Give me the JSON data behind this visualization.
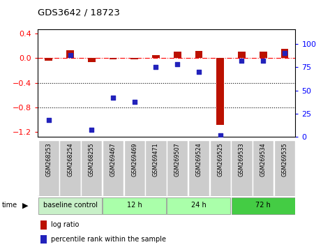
{
  "title": "GDS3642 / 18723",
  "samples": [
    "GSM268253",
    "GSM268254",
    "GSM268255",
    "GSM269467",
    "GSM269469",
    "GSM269471",
    "GSM269507",
    "GSM269524",
    "GSM269525",
    "GSM269533",
    "GSM269534",
    "GSM269535"
  ],
  "log_ratio": [
    -0.04,
    0.13,
    -0.07,
    -0.02,
    -0.02,
    0.05,
    0.1,
    0.12,
    -1.08,
    0.1,
    0.1,
    0.15
  ],
  "percentile_rank": [
    18,
    88,
    8,
    42,
    38,
    75,
    78,
    70,
    2,
    82,
    82,
    90
  ],
  "group_data": [
    {
      "label": "baseline control",
      "count": 3,
      "color": "#c8f0c8"
    },
    {
      "label": "12 h",
      "count": 3,
      "color": "#aaffaa"
    },
    {
      "label": "24 h",
      "count": 3,
      "color": "#aaffaa"
    },
    {
      "label": "72 h",
      "count": 3,
      "color": "#44cc44"
    }
  ],
  "bar_color_red": "#bb1100",
  "bar_color_blue": "#2222bb",
  "ylim_left": [
    -1.28,
    0.46
  ],
  "ylim_right": [
    0,
    115
  ],
  "yticks_left": [
    -1.2,
    -0.8,
    -0.4,
    0.0,
    0.4
  ],
  "yticks_right": [
    0,
    25,
    50,
    75,
    100
  ],
  "dotted_lines": [
    -0.4,
    -0.8
  ],
  "sample_bg": "#cccccc",
  "plot_bg": "#ffffff",
  "bar_width": 0.35
}
